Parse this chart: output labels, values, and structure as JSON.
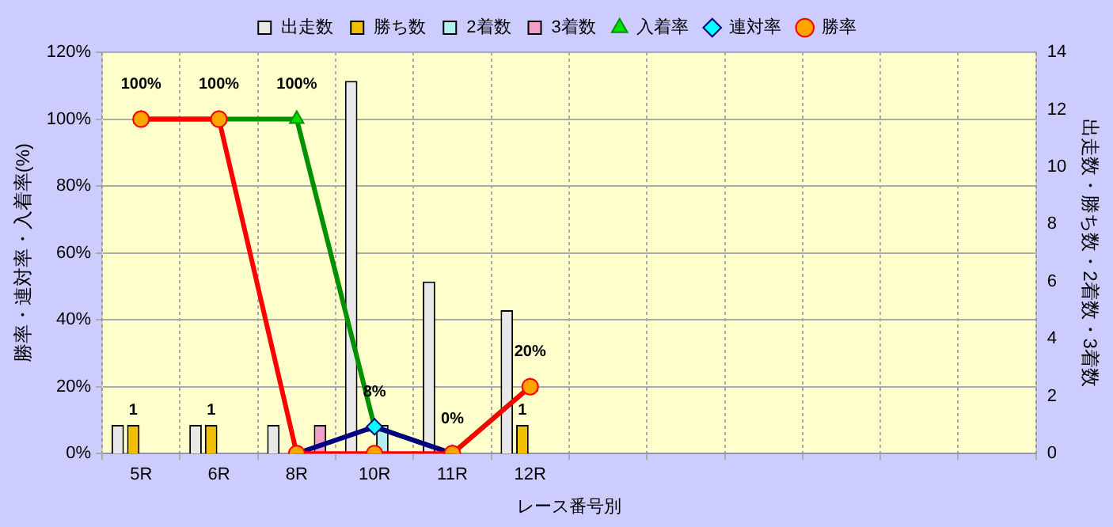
{
  "chart_data": {
    "type": "bar",
    "xlabel": "レース番号別",
    "ylabel": "勝率・連対率・入着率(%)",
    "y2label": "出走数・勝ち数・2着数・3着数",
    "categories": [
      "5R",
      "6R",
      "8R",
      "10R",
      "11R",
      "12R",
      null,
      null,
      null,
      null,
      null,
      null
    ],
    "series": [
      {
        "name": "出走数",
        "type": "bar",
        "axis": "y2",
        "color": "#e8e8e8",
        "values": [
          1,
          1,
          1,
          13,
          6,
          5,
          null,
          null,
          null,
          null,
          null,
          null
        ]
      },
      {
        "name": "勝ち数",
        "type": "bar",
        "axis": "y2",
        "color": "#f0c000",
        "values": [
          1,
          1,
          0,
          0,
          0,
          1,
          null,
          null,
          null,
          null,
          null,
          null
        ],
        "value_labels": [
          "1",
          "1",
          null,
          null,
          null,
          "1",
          null,
          null,
          null,
          null,
          null,
          null
        ]
      },
      {
        "name": "2着数",
        "type": "bar",
        "axis": "y2",
        "color": "#b0f0f0",
        "values": [
          0,
          0,
          0,
          1,
          0,
          0,
          null,
          null,
          null,
          null,
          null,
          null
        ]
      },
      {
        "name": "3着数",
        "type": "bar",
        "axis": "y2",
        "color": "#f0a0c8",
        "values": [
          0,
          0,
          1,
          0,
          0,
          0,
          null,
          null,
          null,
          null,
          null,
          null
        ]
      },
      {
        "name": "入着率",
        "type": "line",
        "axis": "y",
        "color": "#009000",
        "marker": "triangle",
        "values": [
          100,
          100,
          100,
          8,
          0,
          20,
          null,
          null,
          null,
          null,
          null,
          null
        ],
        "value_labels": [
          "100%",
          "100%",
          "100%",
          "8%",
          "0%",
          "20%",
          null,
          null,
          null,
          null,
          null,
          null
        ]
      },
      {
        "name": "連対率",
        "type": "line",
        "axis": "y",
        "color": "#000080",
        "marker": "diamond",
        "values": [
          null,
          null,
          0,
          8,
          0,
          null,
          null,
          null,
          null,
          null,
          null,
          null
        ]
      },
      {
        "name": "勝率",
        "type": "line",
        "axis": "y",
        "color": "#ff0000",
        "marker": "circle",
        "values": [
          100,
          100,
          0,
          0,
          0,
          20,
          null,
          null,
          null,
          null,
          null,
          null
        ]
      }
    ],
    "ylim": [
      0,
      120
    ],
    "yticks": [
      {
        "value": 0,
        "label": "0%"
      },
      {
        "value": 20,
        "label": "20%"
      },
      {
        "value": 40,
        "label": "40%"
      },
      {
        "value": 60,
        "label": "60%"
      },
      {
        "value": 80,
        "label": "80%"
      },
      {
        "value": 100,
        "label": "100%"
      },
      {
        "value": 120,
        "label": "120%"
      }
    ],
    "y2lim": [
      0,
      14
    ],
    "y2ticks": [
      0,
      2,
      4,
      6,
      8,
      10,
      12,
      14
    ],
    "grid": true,
    "legend": "top",
    "line_style": "solid"
  }
}
